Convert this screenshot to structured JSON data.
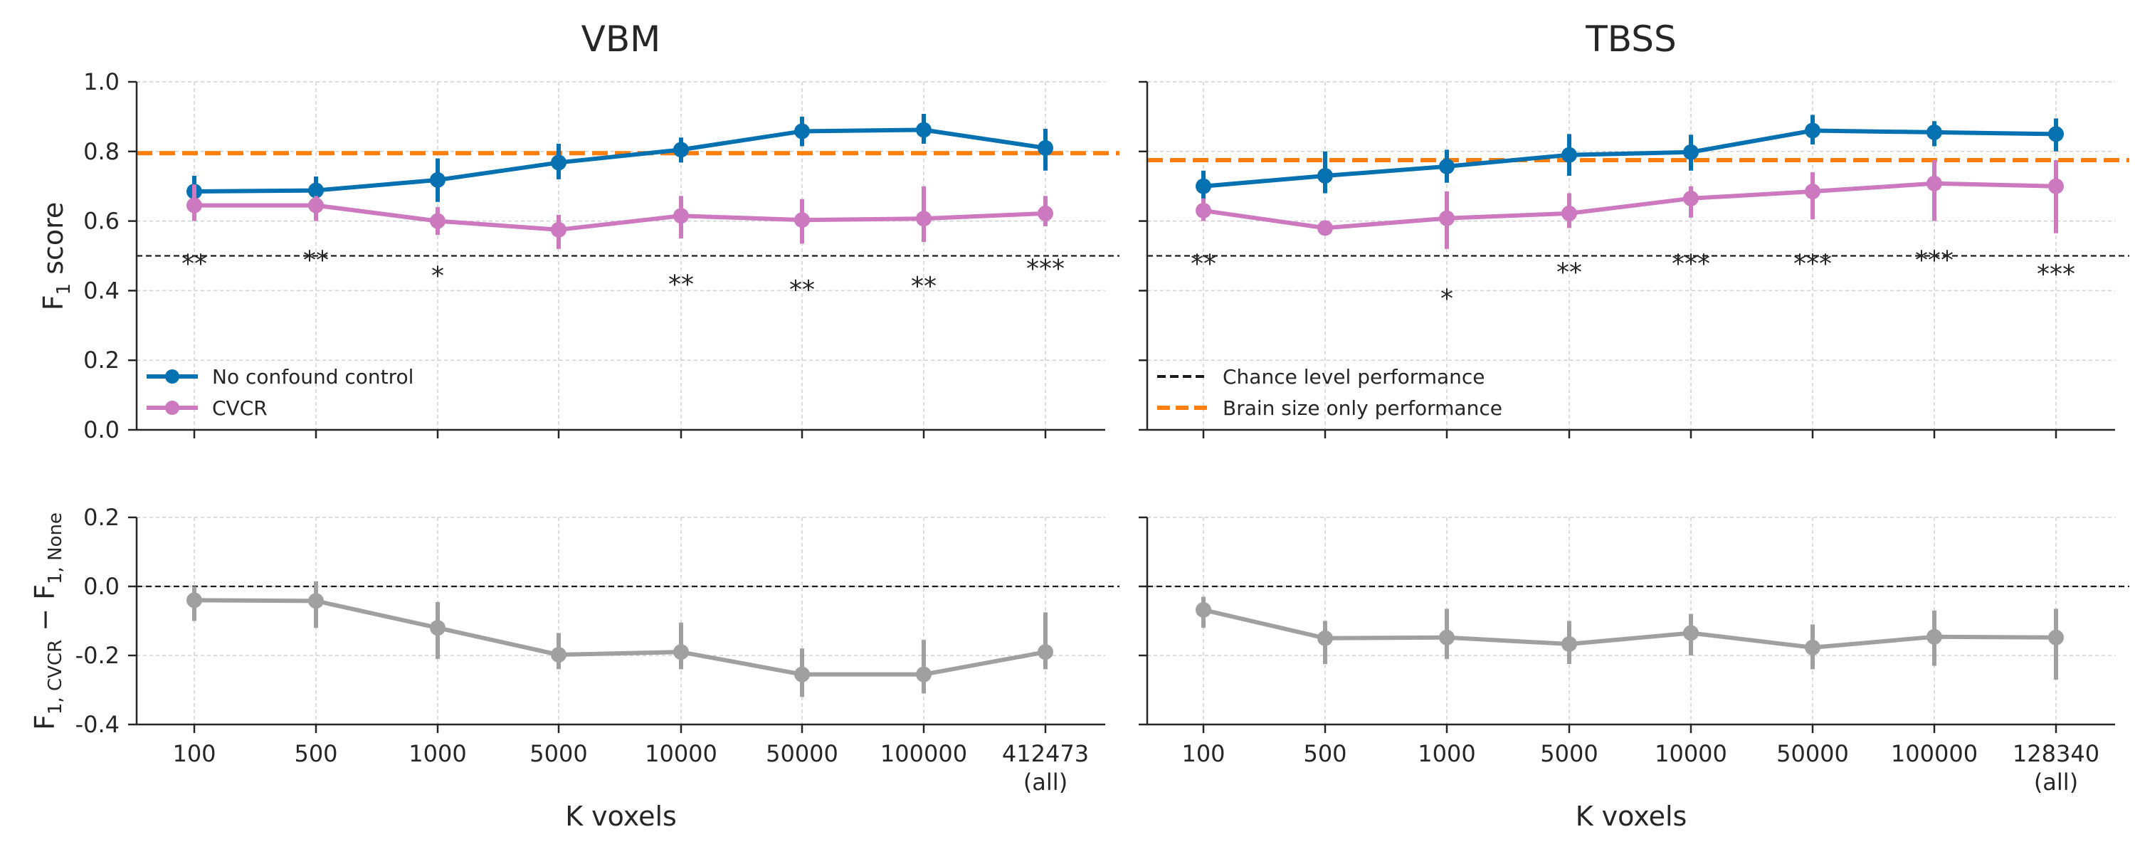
{
  "chart_data": [
    {
      "type": "line",
      "panel": "top-left",
      "title": "VBM",
      "ylabel": "F1 score",
      "ylim": [
        0.0,
        1.0
      ],
      "yticks": [
        "0.0",
        "0.2",
        "0.4",
        "0.6",
        "0.8",
        "1.0"
      ],
      "categories": [
        "100",
        "500",
        "1000",
        "5000",
        "10000",
        "50000",
        "100000",
        "412473"
      ],
      "legend": {
        "placement": "lower-left",
        "entries": [
          "No confound control",
          "CVCR"
        ]
      },
      "grid": true,
      "series": [
        {
          "name": "No confound control",
          "color": "#0571b0",
          "values": [
            0.685,
            0.688,
            0.718,
            0.768,
            0.805,
            0.858,
            0.862,
            0.81
          ],
          "err_low": [
            0.625,
            0.645,
            0.655,
            0.72,
            0.768,
            0.815,
            0.822,
            0.745
          ],
          "err_high": [
            0.73,
            0.728,
            0.78,
            0.822,
            0.84,
            0.9,
            0.908,
            0.865
          ]
        },
        {
          "name": "CVCR",
          "color": "#cc79c0",
          "values": [
            0.645,
            0.645,
            0.6,
            0.575,
            0.615,
            0.603,
            0.607,
            0.622
          ],
          "err_low": [
            0.6,
            0.6,
            0.56,
            0.52,
            0.55,
            0.535,
            0.54,
            0.585
          ],
          "err_high": [
            0.705,
            0.672,
            0.64,
            0.618,
            0.672,
            0.663,
            0.7,
            0.672
          ]
        }
      ],
      "reference_lines": {
        "chance": 0.5,
        "brain_size_only": 0.795
      },
      "annotations": [
        {
          "category": "100",
          "text": "**",
          "y": 0.49
        },
        {
          "category": "500",
          "text": "**",
          "y": 0.5
        },
        {
          "category": "1000",
          "text": "*",
          "y": 0.455
        },
        {
          "category": "10000",
          "text": "**",
          "y": 0.43
        },
        {
          "category": "50000",
          "text": "**",
          "y": 0.415
        },
        {
          "category": "100000",
          "text": "**",
          "y": 0.425
        },
        {
          "category": "412473",
          "text": "***",
          "y": 0.475
        }
      ]
    },
    {
      "type": "line",
      "panel": "top-right",
      "title": "TBSS",
      "ylim": [
        0.0,
        1.0
      ],
      "categories": [
        "100",
        "500",
        "1000",
        "5000",
        "10000",
        "50000",
        "100000",
        "128340"
      ],
      "legend": {
        "placement": "lower-left",
        "entries": [
          "Chance level performance",
          "Brain size only performance"
        ]
      },
      "grid": true,
      "series": [
        {
          "name": "No confound control",
          "color": "#0571b0",
          "values": [
            0.7,
            0.73,
            0.757,
            0.79,
            0.798,
            0.86,
            0.855,
            0.85
          ],
          "err_low": [
            0.65,
            0.68,
            0.71,
            0.73,
            0.745,
            0.82,
            0.815,
            0.8
          ],
          "err_high": [
            0.745,
            0.8,
            0.805,
            0.85,
            0.848,
            0.905,
            0.887,
            0.895
          ]
        },
        {
          "name": "CVCR",
          "color": "#cc79c0",
          "values": [
            0.63,
            0.58,
            0.608,
            0.622,
            0.665,
            0.685,
            0.708,
            0.7
          ],
          "err_low": [
            0.6,
            0.56,
            0.52,
            0.58,
            0.61,
            0.605,
            0.6,
            0.565
          ],
          "err_high": [
            0.665,
            0.6,
            0.685,
            0.68,
            0.7,
            0.74,
            0.775,
            0.775
          ]
        }
      ],
      "reference_lines": {
        "chance": 0.5,
        "brain_size_only": 0.775
      },
      "annotations": [
        {
          "category": "100",
          "text": "**",
          "y": 0.49
        },
        {
          "category": "1000",
          "text": "*",
          "y": 0.39
        },
        {
          "category": "5000",
          "text": "**",
          "y": 0.465
        },
        {
          "category": "10000",
          "text": "***",
          "y": 0.49
        },
        {
          "category": "50000",
          "text": "***",
          "y": 0.49
        },
        {
          "category": "100000",
          "text": "***",
          "y": 0.5
        },
        {
          "category": "128340",
          "text": "***",
          "y": 0.46
        }
      ]
    },
    {
      "type": "line",
      "panel": "bottom-left",
      "ylabel": "F1,CVCR − F1,None",
      "xlabel": "K voxels",
      "ylim": [
        -0.4,
        0.2
      ],
      "yticks": [
        "-0.4",
        "-0.2",
        "0.0",
        "0.2"
      ],
      "categories": [
        "100",
        "500",
        "1000",
        "5000",
        "10000",
        "50000",
        "100000",
        "412473\n(all)"
      ],
      "grid": true,
      "series": [
        {
          "color": "#a0a0a0",
          "values": [
            -0.04,
            -0.042,
            -0.12,
            -0.198,
            -0.19,
            -0.255,
            -0.255,
            -0.19
          ],
          "err_low": [
            -0.1,
            -0.12,
            -0.21,
            -0.24,
            -0.24,
            -0.32,
            -0.31,
            -0.24
          ],
          "err_high": [
            0.0,
            0.015,
            -0.045,
            -0.135,
            -0.105,
            -0.18,
            -0.155,
            -0.075
          ]
        }
      ],
      "reference_lines": {
        "zero": 0.0
      }
    },
    {
      "type": "line",
      "panel": "bottom-right",
      "xlabel": "K voxels",
      "ylim": [
        -0.4,
        0.2
      ],
      "categories": [
        "100",
        "500",
        "1000",
        "5000",
        "10000",
        "50000",
        "100000",
        "128340\n(all)"
      ],
      "grid": true,
      "series": [
        {
          "color": "#a0a0a0",
          "values": [
            -0.068,
            -0.15,
            -0.148,
            -0.167,
            -0.135,
            -0.177,
            -0.146,
            -0.148
          ],
          "err_low": [
            -0.12,
            -0.225,
            -0.21,
            -0.225,
            -0.2,
            -0.24,
            -0.23,
            -0.27
          ],
          "err_high": [
            -0.03,
            -0.1,
            -0.065,
            -0.1,
            -0.08,
            -0.11,
            -0.07,
            -0.065
          ]
        }
      ],
      "reference_lines": {
        "zero": 0.0
      }
    }
  ],
  "colors": {
    "no_confound": "#0571b0",
    "cvcr": "#cc79c0",
    "brain_size": "#ff7f0e",
    "chance": "#1a1a1a",
    "difference": "#a0a0a0"
  }
}
